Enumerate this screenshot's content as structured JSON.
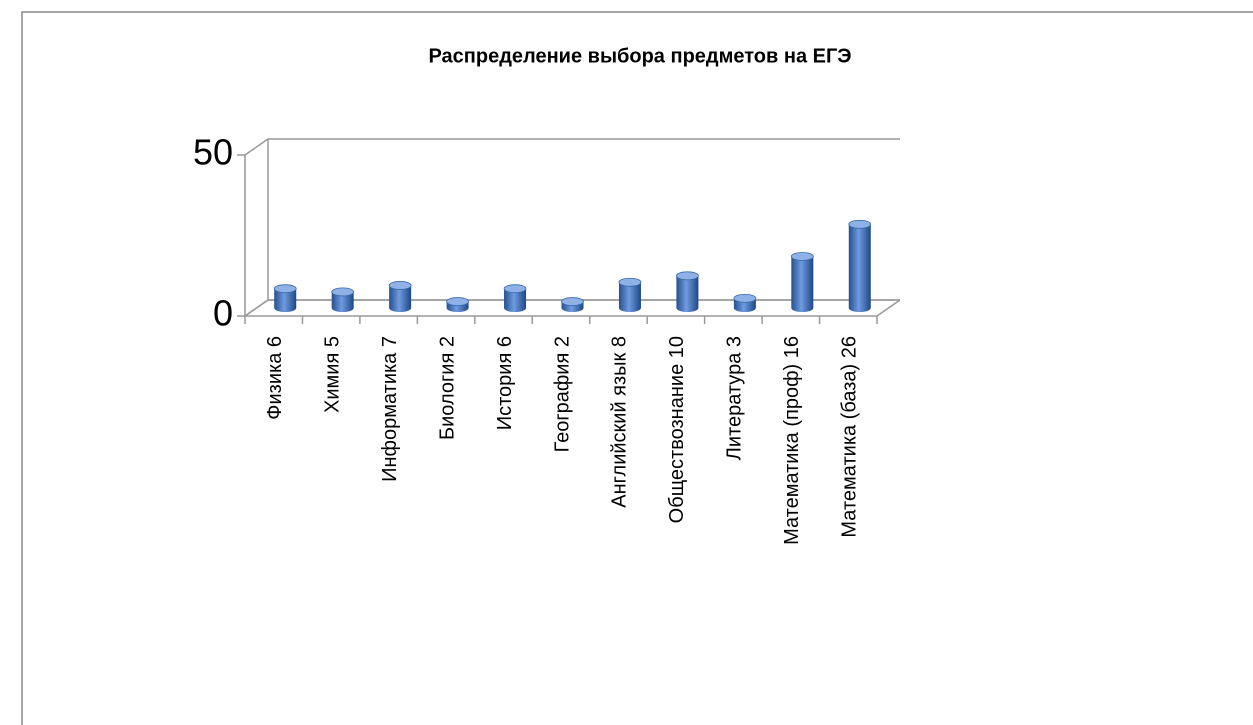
{
  "chart_data": {
    "type": "bar3d",
    "title": "Распределение выбора предметов на ЕГЭ",
    "categories": [
      "Физика 6",
      "Химия 5",
      "Информатика 7",
      "Биология 2",
      "История 6",
      "География 2",
      "Английский язык 8",
      "Обществознание 10",
      "Литература 3",
      "Математика (проф) 16",
      "Математика (база) 26"
    ],
    "values": [
      6,
      5,
      7,
      2,
      6,
      2,
      8,
      10,
      3,
      16,
      26
    ],
    "color": "#4f81bd",
    "ylim": [
      0,
      50
    ],
    "yticks": [
      0,
      50
    ],
    "grid": true
  }
}
